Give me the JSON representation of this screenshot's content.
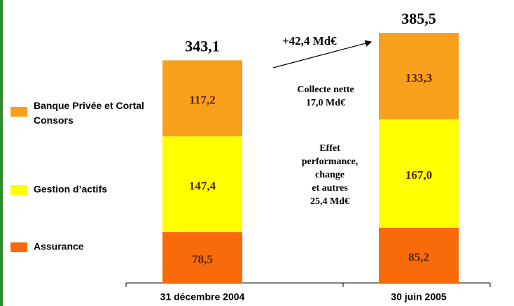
{
  "chart_data": {
    "type": "stacked_bar",
    "categories": [
      "31 décembre 2004",
      "30 juin 2005"
    ],
    "series": [
      {
        "name": "Assurance",
        "color": "#f96a0a",
        "values": [
          78.5,
          85.2
        ],
        "value_labels": [
          "78,5",
          "85,2"
        ]
      },
      {
        "name": "Gestion d’actifs",
        "color": "#ffff00",
        "values": [
          147.4,
          167.0
        ],
        "value_labels": [
          "147,4",
          "167,0"
        ]
      },
      {
        "name": "Banque Privée et Cortal Consors",
        "color": "#f8a01c",
        "values": [
          117.2,
          133.3
        ],
        "value_labels": [
          "117,2",
          "133,3"
        ]
      }
    ],
    "totals": [
      343.1,
      385.5
    ],
    "total_labels": [
      "343,1",
      "385,5"
    ],
    "growth_label": "+42,4 Md€",
    "flow_notes": [
      [
        "Collecte nette",
        "17,0 Md€"
      ],
      [
        "Effet",
        "performance,",
        "change",
        "et autres",
        "25,4 Md€"
      ]
    ]
  }
}
